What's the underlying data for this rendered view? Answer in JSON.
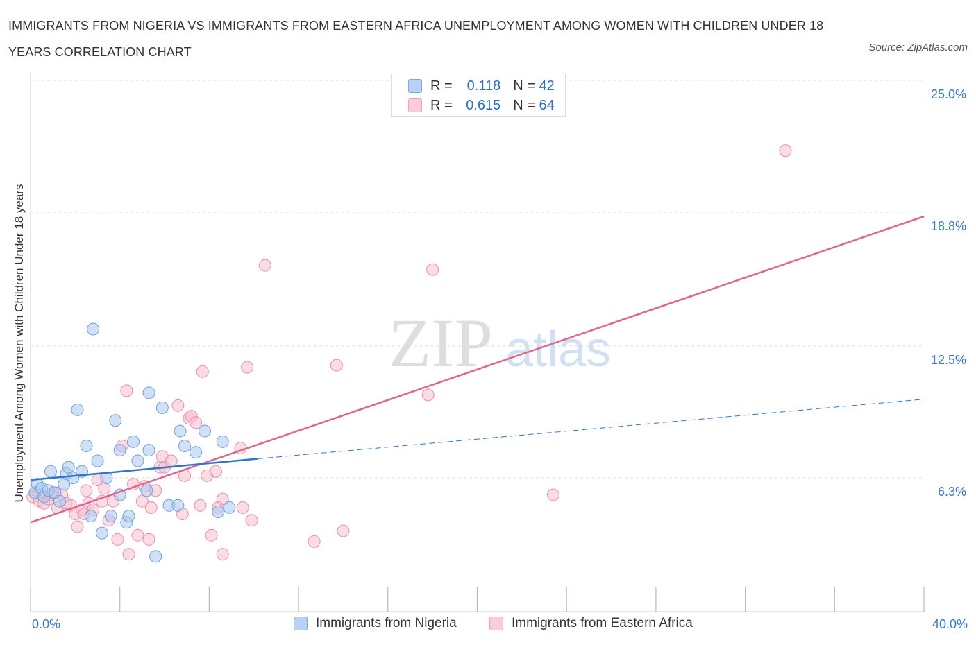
{
  "header": {
    "title": "IMMIGRANTS FROM NIGERIA VS IMMIGRANTS FROM EASTERN AFRICA UNEMPLOYMENT AMONG WOMEN WITH CHILDREN UNDER 18 YEARS CORRELATION CHART",
    "source": "Source: ZipAtlas.com"
  },
  "watermark": {
    "zip": "ZIP",
    "atlas": "atlas"
  },
  "legend": {
    "series1": {
      "r_label": "R =",
      "r_value": "0.118",
      "n_label": "N =",
      "n_value": "42"
    },
    "series2": {
      "r_label": "R =",
      "r_value": "0.615",
      "n_label": "N =",
      "n_value": "64"
    }
  },
  "colors": {
    "blue_fill": "#a9c8f0",
    "blue_stroke": "#6f9fdc",
    "blue_line": "#2f74d0",
    "pink_fill": "#f7bfd0",
    "pink_stroke": "#e890ac",
    "pink_line": "#e0648e",
    "axis_text": "#3a78c9",
    "grid": "#dddddd"
  },
  "chart_data": {
    "type": "scatter",
    "title": "IMMIGRANTS FROM NIGERIA VS IMMIGRANTS FROM EASTERN AFRICA UNEMPLOYMENT AMONG WOMEN WITH CHILDREN UNDER 18 YEARS CORRELATION CHART",
    "xlabel": "",
    "ylabel": "Unemployment Among Women with Children Under 18 years",
    "xlim": [
      0,
      40
    ],
    "ylim": [
      0,
      25
    ],
    "x_tick_labels": {
      "left": "0.0%",
      "right": "40.0%"
    },
    "y_ticks": [
      {
        "value": 6.3,
        "label": "6.3%"
      },
      {
        "value": 12.5,
        "label": "12.5%"
      },
      {
        "value": 18.8,
        "label": "18.8%"
      },
      {
        "value": 25.0,
        "label": "25.0%"
      }
    ],
    "grid": true,
    "legend_position": "bottom-center",
    "series": [
      {
        "name": "Immigrants from Nigeria",
        "color": "#a9c8f0",
        "R": 0.118,
        "N": 42,
        "trend": {
          "x0": 0,
          "y0": 6.2,
          "x_solid_end": 10.2,
          "y_solid_end": 7.2,
          "x1": 40,
          "y1": 10.0
        },
        "points": [
          [
            0.2,
            5.6
          ],
          [
            0.3,
            6.0
          ],
          [
            0.5,
            5.8
          ],
          [
            0.6,
            5.4
          ],
          [
            0.8,
            5.7
          ],
          [
            0.9,
            6.6
          ],
          [
            1.1,
            5.6
          ],
          [
            1.3,
            5.2
          ],
          [
            1.5,
            6.0
          ],
          [
            1.6,
            6.5
          ],
          [
            1.7,
            6.8
          ],
          [
            1.9,
            6.3
          ],
          [
            2.1,
            9.5
          ],
          [
            2.3,
            6.6
          ],
          [
            2.5,
            7.8
          ],
          [
            2.7,
            4.5
          ],
          [
            3.0,
            7.1
          ],
          [
            3.2,
            3.7
          ],
          [
            3.4,
            6.3
          ],
          [
            3.6,
            4.5
          ],
          [
            3.8,
            9.0
          ],
          [
            4.0,
            5.5
          ],
          [
            4.0,
            7.6
          ],
          [
            4.3,
            4.2
          ],
          [
            4.4,
            4.5
          ],
          [
            4.6,
            8.0
          ],
          [
            4.8,
            7.1
          ],
          [
            5.2,
            5.7
          ],
          [
            5.3,
            7.6
          ],
          [
            5.3,
            10.3
          ],
          [
            5.6,
            2.6
          ],
          [
            5.9,
            9.6
          ],
          [
            6.2,
            5.0
          ],
          [
            6.6,
            5.0
          ],
          [
            6.7,
            8.5
          ],
          [
            6.9,
            7.8
          ],
          [
            7.4,
            7.5
          ],
          [
            7.8,
            8.5
          ],
          [
            8.4,
            4.7
          ],
          [
            8.6,
            8.0
          ],
          [
            8.9,
            4.9
          ],
          [
            2.8,
            13.3
          ]
        ]
      },
      {
        "name": "Immigrants from Eastern Africa",
        "color": "#f7bfd0",
        "R": 0.615,
        "N": 64,
        "trend": {
          "x0": 0,
          "y0": 4.2,
          "x1": 40,
          "y1": 18.6
        },
        "points": [
          [
            0.1,
            5.4
          ],
          [
            0.2,
            5.6
          ],
          [
            0.4,
            5.2
          ],
          [
            0.6,
            5.1
          ],
          [
            0.8,
            5.3
          ],
          [
            0.9,
            5.5
          ],
          [
            1.0,
            5.6
          ],
          [
            1.2,
            4.9
          ],
          [
            1.4,
            5.5
          ],
          [
            1.6,
            5.1
          ],
          [
            1.8,
            5.0
          ],
          [
            2.0,
            4.6
          ],
          [
            2.1,
            4.0
          ],
          [
            2.3,
            4.8
          ],
          [
            2.4,
            4.6
          ],
          [
            2.5,
            5.7
          ],
          [
            2.6,
            5.1
          ],
          [
            2.8,
            4.8
          ],
          [
            3.0,
            6.2
          ],
          [
            3.2,
            5.2
          ],
          [
            3.3,
            5.8
          ],
          [
            3.5,
            4.3
          ],
          [
            3.7,
            5.2
          ],
          [
            3.9,
            3.4
          ],
          [
            4.1,
            7.8
          ],
          [
            4.3,
            10.4
          ],
          [
            4.4,
            2.7
          ],
          [
            4.6,
            6.0
          ],
          [
            4.8,
            3.6
          ],
          [
            5.0,
            5.2
          ],
          [
            5.1,
            5.9
          ],
          [
            5.3,
            3.4
          ],
          [
            5.4,
            4.9
          ],
          [
            5.6,
            5.7
          ],
          [
            5.8,
            6.8
          ],
          [
            5.9,
            7.3
          ],
          [
            6.0,
            6.8
          ],
          [
            6.3,
            7.1
          ],
          [
            6.6,
            9.7
          ],
          [
            6.8,
            4.6
          ],
          [
            6.9,
            6.4
          ],
          [
            7.1,
            9.1
          ],
          [
            7.2,
            9.2
          ],
          [
            7.4,
            8.9
          ],
          [
            7.6,
            5.0
          ],
          [
            7.7,
            11.3
          ],
          [
            7.9,
            6.4
          ],
          [
            8.1,
            3.6
          ],
          [
            8.3,
            6.6
          ],
          [
            8.4,
            4.9
          ],
          [
            8.6,
            2.7
          ],
          [
            8.6,
            5.3
          ],
          [
            9.4,
            7.7
          ],
          [
            9.5,
            4.9
          ],
          [
            9.7,
            11.5
          ],
          [
            9.9,
            4.3
          ],
          [
            10.5,
            16.3
          ],
          [
            12.7,
            3.3
          ],
          [
            13.7,
            11.6
          ],
          [
            14.0,
            3.8
          ],
          [
            17.8,
            10.2
          ],
          [
            18.0,
            16.1
          ],
          [
            23.4,
            5.5
          ],
          [
            33.8,
            21.7
          ]
        ]
      }
    ]
  }
}
